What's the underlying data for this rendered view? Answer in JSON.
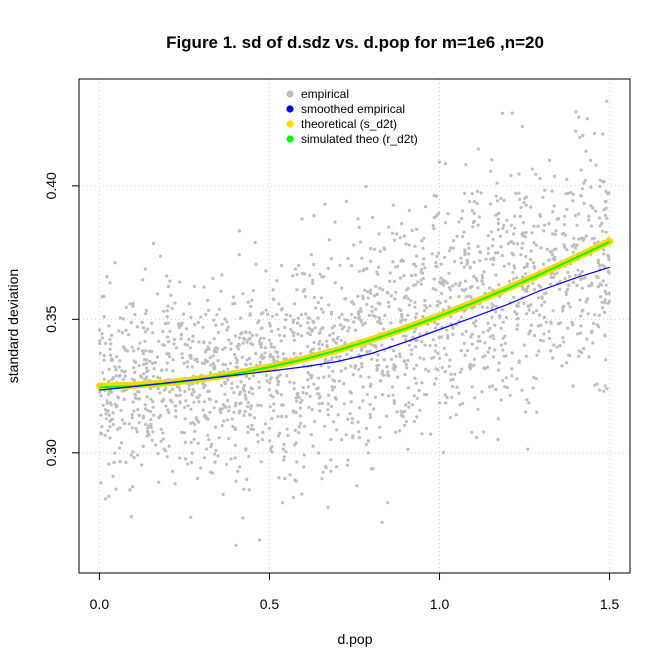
{
  "chart_data": {
    "type": "scatter",
    "title": "Figure 1. sd of d.sdz vs. d.pop for m=1e6 ,n=20",
    "xlabel": "d.pop",
    "ylabel": "standard deviation",
    "xlim": [
      -0.06,
      1.56
    ],
    "ylim": [
      0.255,
      0.44
    ],
    "xticks": [
      0.0,
      0.5,
      1.0,
      1.5
    ],
    "xtick_labels": [
      "0.0",
      "0.5",
      "1.0",
      "1.5"
    ],
    "yticks": [
      0.3,
      0.35,
      0.4
    ],
    "ytick_labels": [
      "0.30",
      "0.35",
      "0.40"
    ],
    "grid": true,
    "legend_position": "top-center",
    "scatter_points": {
      "name": "empirical",
      "color": "#bebebe",
      "count": 2000,
      "x_range": [
        0.0,
        1.5
      ],
      "mean_curve": "theoretical",
      "spread_sd": [
        0.018,
        0.024
      ]
    },
    "series": [
      {
        "name": "empirical",
        "kind": "points",
        "color": "#bebebe"
      },
      {
        "name": "smoothed empirical",
        "kind": "line",
        "color": "#0000ff",
        "x": [
          0.0,
          0.1,
          0.2,
          0.3,
          0.4,
          0.5,
          0.6,
          0.7,
          0.8,
          0.9,
          1.0,
          1.1,
          1.2,
          1.3,
          1.4,
          1.5
        ],
        "y": [
          0.3235,
          0.3248,
          0.3262,
          0.3276,
          0.3291,
          0.3306,
          0.3322,
          0.3342,
          0.3372,
          0.3415,
          0.3462,
          0.3508,
          0.3556,
          0.361,
          0.3655,
          0.3695
        ]
      },
      {
        "name": "theoretical (s_d2t)",
        "kind": "line",
        "color": "#ffd700",
        "x": [
          0.0,
          0.1,
          0.2,
          0.3,
          0.4,
          0.5,
          0.6,
          0.7,
          0.8,
          0.9,
          1.0,
          1.1,
          1.2,
          1.3,
          1.4,
          1.5
        ],
        "y": [
          0.325,
          0.3253,
          0.3262,
          0.3277,
          0.3297,
          0.3322,
          0.3351,
          0.3385,
          0.3424,
          0.3467,
          0.3513,
          0.3563,
          0.3616,
          0.3672,
          0.3731,
          0.3792
        ]
      },
      {
        "name": "simulated theo (r_d2t)",
        "kind": "line",
        "color": "#00ff00",
        "x": [
          0.0,
          0.1,
          0.2,
          0.3,
          0.4,
          0.5,
          0.6,
          0.7,
          0.8,
          0.9,
          1.0,
          1.1,
          1.2,
          1.3,
          1.4,
          1.5
        ],
        "y": [
          0.3245,
          0.325,
          0.326,
          0.3276,
          0.3296,
          0.3321,
          0.335,
          0.3384,
          0.3423,
          0.3466,
          0.3512,
          0.3562,
          0.3615,
          0.3671,
          0.373,
          0.379
        ]
      }
    ],
    "legend": [
      {
        "label": "empirical",
        "color": "#bebebe"
      },
      {
        "label": "smoothed empirical",
        "color": "#0000ff"
      },
      {
        "label": "theoretical (s_d2t)",
        "color": "#ffd700"
      },
      {
        "label": "simulated theo (r_d2t)",
        "color": "#00ff00"
      }
    ]
  }
}
